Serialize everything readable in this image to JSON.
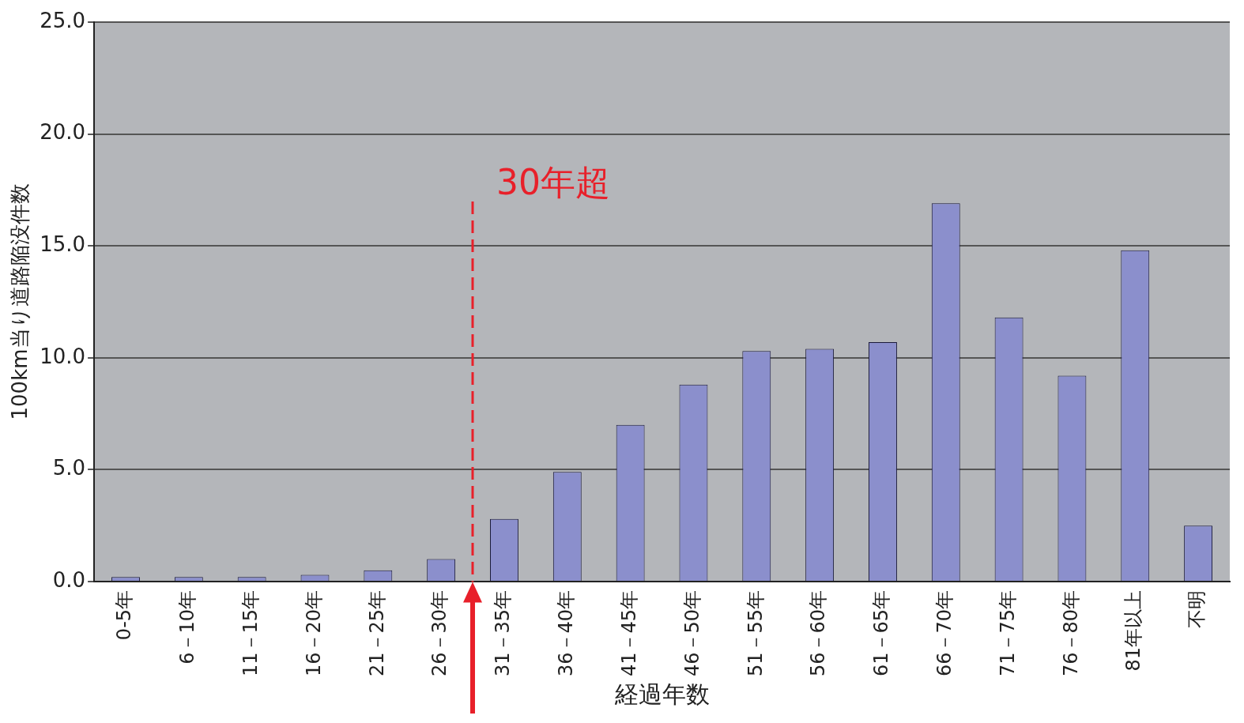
{
  "chart_data": {
    "type": "bar",
    "xlabel": "経過年数",
    "ylabel": "100km当り道路陥没件数",
    "categories": [
      "0-5年",
      "6－10年",
      "11－15年",
      "16－20年",
      "21－25年",
      "26－30年",
      "31－35年",
      "36－40年",
      "41－45年",
      "46－50年",
      "51－55年",
      "56－60年",
      "61－65年",
      "66－70年",
      "71－75年",
      "76－80年",
      "81年以上",
      "不明"
    ],
    "values": [
      0.2,
      0.2,
      0.2,
      0.3,
      0.5,
      1.0,
      2.8,
      4.9,
      7.0,
      8.8,
      10.3,
      10.4,
      10.7,
      16.9,
      11.8,
      9.2,
      14.8,
      2.5
    ],
    "color": "#8b8fcc",
    "ylim": [
      0,
      25
    ],
    "yticks": [
      {
        "value": 0,
        "label": "0.0"
      },
      {
        "value": 5,
        "label": "5.0"
      },
      {
        "value": 10,
        "label": "10.0"
      },
      {
        "value": 15,
        "label": "15.0"
      },
      {
        "value": 20,
        "label": "20.0"
      },
      {
        "value": 25,
        "label": "25.0"
      }
    ],
    "grid": "y",
    "annotations": [
      "30年超"
    ]
  }
}
